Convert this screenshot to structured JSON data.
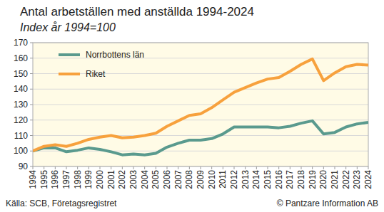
{
  "chart_data": {
    "type": "line",
    "title": "Antal arbetställen med anställda 1994-2024",
    "subtitle": "Index år 1994=100",
    "source": "Källa: SCB, Företagsregistret",
    "credit": "© Pantzare Information AB",
    "categories": [
      "1994",
      "1995",
      "1996",
      "1997",
      "1998",
      "1999",
      "2000",
      "2001",
      "2002",
      "2003",
      "2004",
      "2005",
      "2006",
      "2007",
      "2008",
      "2009",
      "2010",
      "2011",
      "2012",
      "2013",
      "2014",
      "2015",
      "2016",
      "2017",
      "2018",
      "2019",
      "2020",
      "2021",
      "2022",
      "2023",
      "2024"
    ],
    "series": [
      {
        "name": "Norrbottens län",
        "color": "#5a9a8e",
        "values": [
          100,
          102,
          102,
          99.5,
          100.5,
          102,
          101,
          99.5,
          97.5,
          98,
          97.5,
          98.5,
          102.5,
          105,
          107,
          107,
          108,
          111,
          115.5,
          115.5,
          115.5,
          115.5,
          115,
          116,
          118,
          119.5,
          111,
          112,
          115.5,
          117.5,
          118.5
        ]
      },
      {
        "name": "Riket",
        "color": "#f7a13d",
        "values": [
          100,
          103,
          104,
          103,
          105,
          107.5,
          109,
          110,
          108.5,
          109,
          110,
          111.5,
          116,
          119.5,
          123,
          124,
          128,
          133,
          138,
          141,
          144,
          146.5,
          147.5,
          151.5,
          156,
          159.5,
          145.5,
          150.5,
          154.5,
          156,
          155.5
        ]
      }
    ],
    "ylim": [
      90,
      170
    ],
    "yticks": [
      90,
      100,
      110,
      120,
      130,
      140,
      150,
      160,
      170
    ],
    "grid": true,
    "legend": "upper left"
  }
}
